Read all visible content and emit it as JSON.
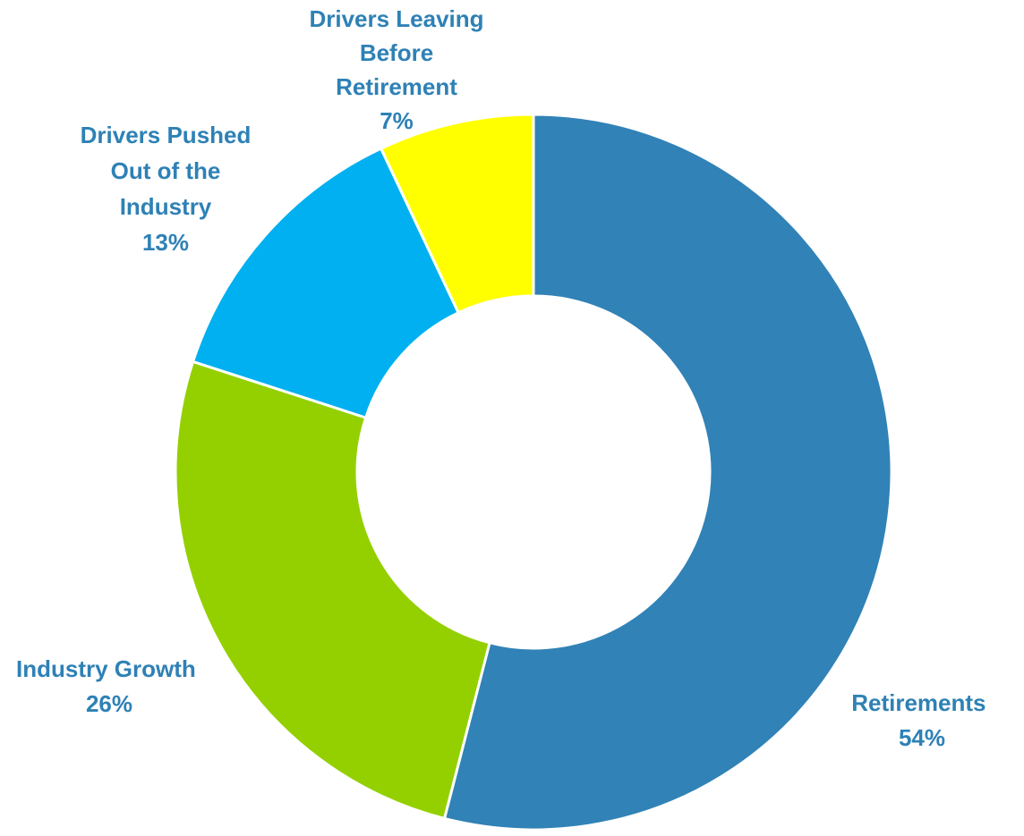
{
  "chart_data": {
    "type": "pie",
    "variant": "donut",
    "title": "",
    "legend": "none",
    "slices": [
      {
        "label": "Retirements",
        "value": 54,
        "value_label": "54%",
        "color": "#3182b6"
      },
      {
        "label": "Industry Growth",
        "value": 26,
        "value_label": "26%",
        "color": "#94d000"
      },
      {
        "label": "Drivers Pushed Out of the Industry",
        "value": 13,
        "value_label": "13%",
        "color": "#00b0f0"
      },
      {
        "label": "Drivers Leaving Before Retirement",
        "value": 7,
        "value_label": "7%",
        "color": "#ffff00"
      }
    ],
    "label_color": "#2e81b5"
  }
}
